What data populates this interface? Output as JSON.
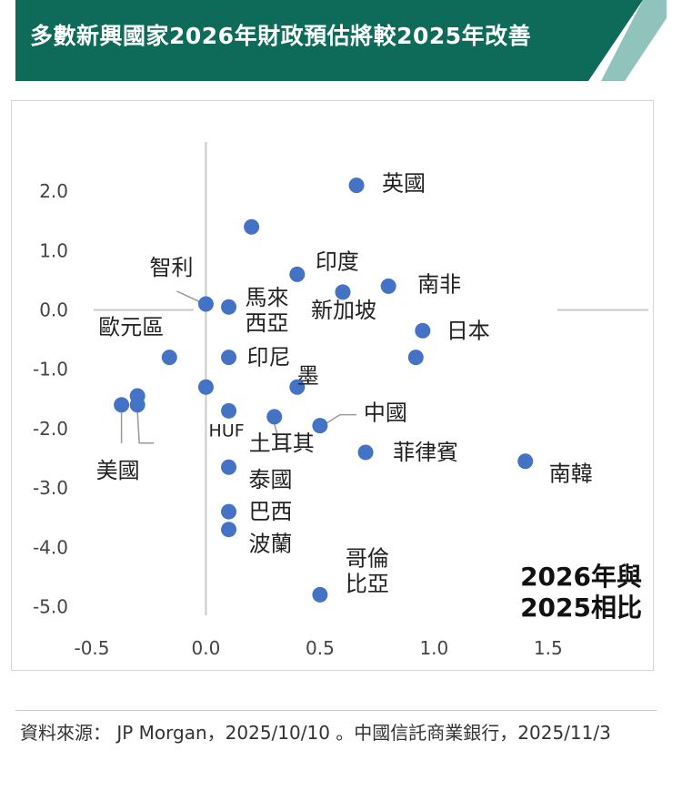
{
  "header": {
    "title": "多數新興國家2026年財政預估將較2025年改善",
    "colors": {
      "band": "#0e6b5a",
      "stripe": "#8fc3bb"
    }
  },
  "chart_data": {
    "type": "scatter",
    "annotation": [
      "2026年與",
      "2025相比"
    ],
    "xlim": [
      -0.5,
      1.7
    ],
    "ylim": [
      -5.3,
      2.6
    ],
    "x_ticks": [
      -0.5,
      0.0,
      0.5,
      1.0,
      1.5
    ],
    "y_ticks": [
      2.0,
      1.0,
      0.0,
      -1.0,
      -2.0,
      -3.0,
      -4.0,
      -5.0
    ],
    "x_tick_labels": [
      "-0.5",
      "0.0",
      "0.5",
      "1.0",
      "1.5"
    ],
    "y_tick_labels": [
      "2.0",
      "1.0",
      "0.0",
      "-1.0",
      "-2.0",
      "-3.0",
      "-4.0",
      "-5.0"
    ],
    "point_color": "#4472c4",
    "points": [
      {
        "x": 0.66,
        "y": 2.1,
        "label": "英國"
      },
      {
        "x": 0.2,
        "y": 1.4,
        "label": ""
      },
      {
        "x": 0.4,
        "y": 0.6,
        "label": "印度"
      },
      {
        "x": 0.8,
        "y": 0.4,
        "label": "南非"
      },
      {
        "x": 0.6,
        "y": 0.3,
        "label": "新加坡"
      },
      {
        "x": 0.0,
        "y": 0.1,
        "label": "智利"
      },
      {
        "x": 0.1,
        "y": 0.05,
        "label": "馬來西亞"
      },
      {
        "x": 0.95,
        "y": -0.35,
        "label": "日本"
      },
      {
        "x": 0.92,
        "y": -0.8,
        "label": ""
      },
      {
        "x": -0.16,
        "y": -0.8,
        "label": "歐元區"
      },
      {
        "x": 0.1,
        "y": -0.8,
        "label": "印尼"
      },
      {
        "x": 0.0,
        "y": -1.3,
        "label": ""
      },
      {
        "x": 0.4,
        "y": -1.3,
        "label": "墨"
      },
      {
        "x": -0.3,
        "y": -1.45,
        "label": ""
      },
      {
        "x": -0.37,
        "y": -1.6,
        "label": "美國"
      },
      {
        "x": -0.3,
        "y": -1.6,
        "label": ""
      },
      {
        "x": 0.1,
        "y": -1.7,
        "label": "HUF"
      },
      {
        "x": 0.3,
        "y": -1.8,
        "label": "土耳其"
      },
      {
        "x": 0.5,
        "y": -1.95,
        "label": "中國"
      },
      {
        "x": 0.7,
        "y": -2.4,
        "label": "菲律賓"
      },
      {
        "x": 1.4,
        "y": -2.55,
        "label": "南韓"
      },
      {
        "x": 0.1,
        "y": -2.65,
        "label": "泰國"
      },
      {
        "x": 0.1,
        "y": -3.4,
        "label": "巴西"
      },
      {
        "x": 0.1,
        "y": -3.7,
        "label": "波蘭"
      },
      {
        "x": 0.5,
        "y": -4.8,
        "label": "哥倫比亞"
      }
    ]
  },
  "source": {
    "text": "資料來源： JP Morgan，2025/10/10 。中國信託商業銀行，2025/11/3"
  }
}
